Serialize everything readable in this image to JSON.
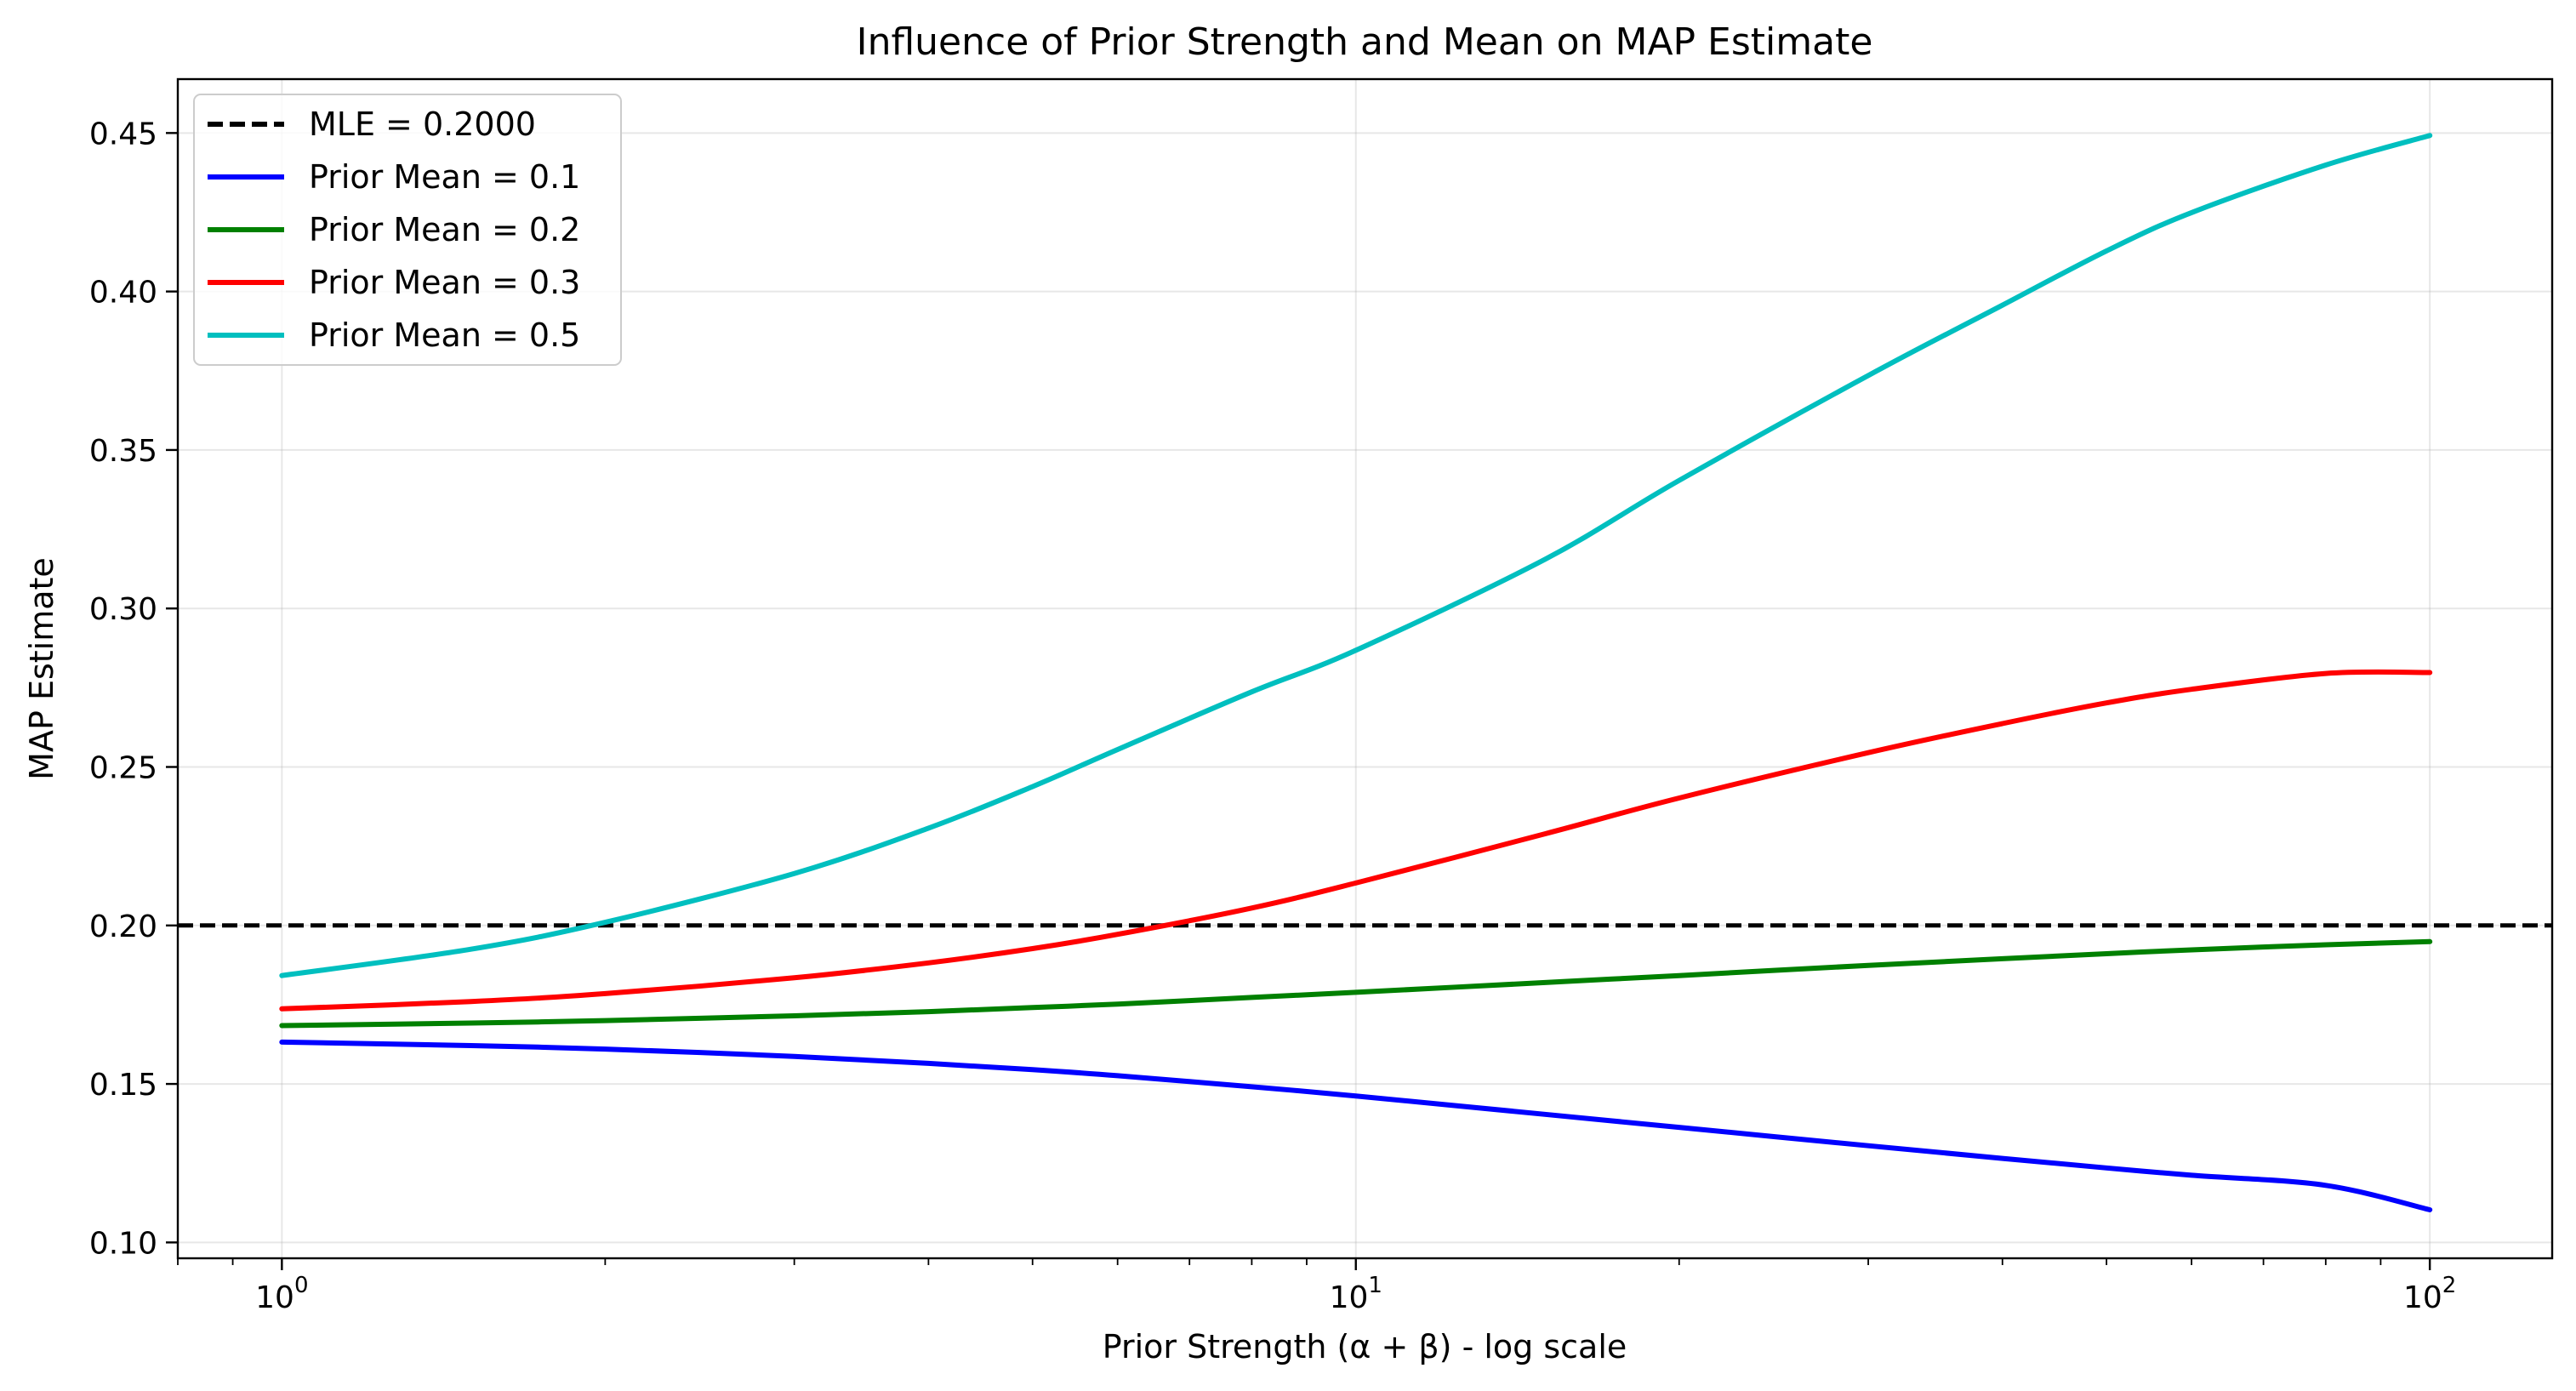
{
  "chart_data": {
    "type": "line",
    "title": "Influence of Prior Strength and Mean on MAP Estimate",
    "xlabel": "Prior Strength (α + β) - log scale",
    "ylabel": "MAP Estimate",
    "xscale": "log",
    "xlim": [
      0.8,
      130
    ],
    "ylim": [
      0.095,
      0.467
    ],
    "x_ticks": [
      {
        "value": 1,
        "base": "10",
        "exp": "0"
      },
      {
        "value": 10,
        "base": "10",
        "exp": "1"
      },
      {
        "value": 100,
        "base": "10",
        "exp": "2"
      }
    ],
    "y_ticks": [
      {
        "value": 0.1,
        "label": "0.10"
      },
      {
        "value": 0.15,
        "label": "0.15"
      },
      {
        "value": 0.2,
        "label": "0.20"
      },
      {
        "value": 0.25,
        "label": "0.25"
      },
      {
        "value": 0.3,
        "label": "0.30"
      },
      {
        "value": 0.35,
        "label": "0.35"
      },
      {
        "value": 0.4,
        "label": "0.40"
      },
      {
        "value": 0.45,
        "label": "0.45"
      }
    ],
    "grid": true,
    "legend_position": "upper-left",
    "reference_line": {
      "name": "MLE = 0.2000",
      "y": 0.2,
      "color": "#000000",
      "style": "dashed"
    },
    "x": [
      1,
      1.5,
      2,
      3,
      4,
      5,
      6,
      8,
      10,
      15,
      20,
      30,
      40,
      50,
      60,
      80,
      100
    ],
    "series": [
      {
        "name": "Prior Mean = 0.1",
        "color": "#0000ff",
        "values": [
          0.1632,
          0.1621,
          0.161,
          0.1587,
          0.1565,
          0.1545,
          0.1526,
          0.1491,
          0.1462,
          0.1404,
          0.1363,
          0.1305,
          0.1265,
          0.1235,
          0.1212,
          0.118,
          0.1103
        ]
      },
      {
        "name": "Prior Mean = 0.2",
        "color": "#008000",
        "values": [
          0.1684,
          0.1692,
          0.17,
          0.1715,
          0.1728,
          0.1741,
          0.1752,
          0.1773,
          0.1789,
          0.182,
          0.1842,
          0.1874,
          0.1895,
          0.1911,
          0.1923,
          0.1939,
          0.1949
        ]
      },
      {
        "name": "Prior Mean = 0.3",
        "color": "#ff0000",
        "values": [
          0.1737,
          0.176,
          0.1785,
          0.1835,
          0.1882,
          0.1927,
          0.1972,
          0.2055,
          0.2134,
          0.2289,
          0.2402,
          0.2545,
          0.2637,
          0.2702,
          0.2745,
          0.2795,
          0.2798
        ]
      },
      {
        "name": "Prior Mean = 0.5",
        "color": "#00bfbf",
        "values": [
          0.1842,
          0.1925,
          0.201,
          0.2164,
          0.2307,
          0.2438,
          0.2555,
          0.2737,
          0.2868,
          0.3155,
          0.3404,
          0.3735,
          0.3957,
          0.4128,
          0.4249,
          0.4399,
          0.4492
        ]
      }
    ]
  }
}
